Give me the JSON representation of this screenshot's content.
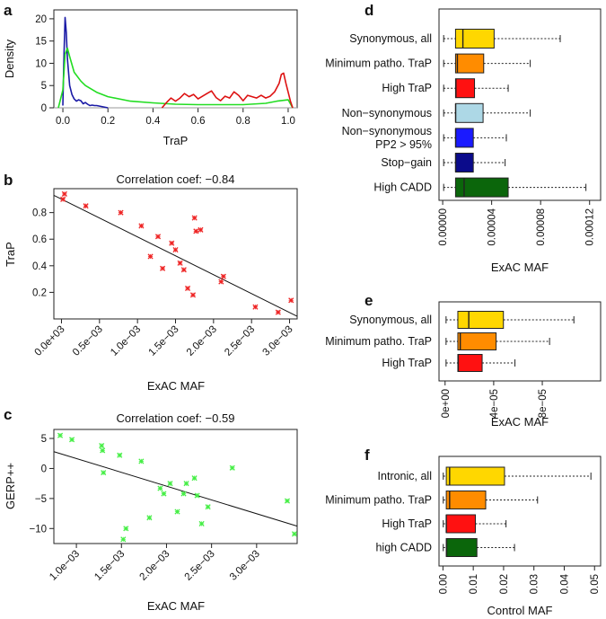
{
  "chart_data": [
    {
      "id": "a",
      "panel_label": "a",
      "type": "line",
      "title": "",
      "xlabel": "TraP",
      "ylabel": "Density",
      "xlim": [
        -0.04,
        1.04
      ],
      "ylim": [
        0,
        22
      ],
      "xticks": [
        "0.0",
        "0.2",
        "0.4",
        "0.6",
        "0.8",
        "1.0"
      ],
      "yticks": [
        "0",
        "5",
        "10",
        "15",
        "20"
      ],
      "series": [
        {
          "name": "blue",
          "color": "#1a1aa6",
          "x": [
            0.0,
            0.005,
            0.01,
            0.015,
            0.02,
            0.03,
            0.04,
            0.05,
            0.06,
            0.07,
            0.08,
            0.09,
            0.1,
            0.11,
            0.12,
            0.13,
            0.14,
            0.15,
            0.16,
            0.17,
            0.18,
            0.19,
            0.2
          ],
          "values": [
            0.5,
            12,
            20.3,
            17,
            11,
            5,
            3,
            2,
            1.5,
            1.8,
            1.6,
            0.9,
            1.2,
            0.8,
            0.5,
            0.6,
            0.5,
            0.5,
            0.4,
            0.3,
            0.2,
            0.1,
            0
          ]
        },
        {
          "name": "green",
          "color": "#22dd22",
          "x": [
            -0.02,
            0.0,
            0.01,
            0.02,
            0.03,
            0.05,
            0.08,
            0.1,
            0.15,
            0.2,
            0.3,
            0.4,
            0.5,
            0.6,
            0.7,
            0.8,
            0.9,
            0.95,
            1.0,
            1.02
          ],
          "values": [
            0,
            4,
            12,
            13.4,
            11.5,
            8,
            6,
            5,
            3.5,
            2.5,
            1.5,
            1.1,
            0.8,
            0.7,
            0.7,
            0.7,
            1.0,
            1.5,
            1.8,
            0
          ]
        },
        {
          "name": "red",
          "color": "#dd1111",
          "x": [
            0.44,
            0.46,
            0.48,
            0.5,
            0.52,
            0.54,
            0.56,
            0.58,
            0.6,
            0.62,
            0.64,
            0.66,
            0.68,
            0.7,
            0.72,
            0.74,
            0.76,
            0.78,
            0.8,
            0.82,
            0.84,
            0.86,
            0.88,
            0.9,
            0.92,
            0.94,
            0.96,
            0.97,
            0.98,
            0.99,
            1.0,
            1.01,
            1.02
          ],
          "values": [
            0,
            1.2,
            2.2,
            1.5,
            2.2,
            3.2,
            2.5,
            3,
            2,
            2.6,
            3.2,
            3.8,
            2.3,
            1.6,
            2.6,
            2.2,
            3.6,
            2.8,
            1.6,
            2.8,
            2.5,
            2.2,
            2.8,
            2.2,
            2.6,
            3.6,
            5.5,
            7.5,
            7.8,
            5.5,
            3.5,
            1.5,
            0
          ]
        }
      ]
    },
    {
      "id": "b",
      "panel_label": "b",
      "type": "scatter",
      "title": "Correlation coef: −0.84",
      "xlabel": "ExAC MAF",
      "ylabel": "TraP",
      "xlim": [
        -0.0001,
        0.0031
      ],
      "ylim": [
        0.0,
        0.98
      ],
      "xticks": [
        "0.0e+03",
        "0.5e−03",
        "1.0e−03",
        "1.5e−03",
        "2.0e−03",
        "2.5e−03",
        "3.0e−03"
      ],
      "xtick_values": [
        0.0,
        0.0005,
        0.001,
        0.0015,
        0.002,
        0.0025,
        0.003
      ],
      "yticks": [
        "0.2",
        "0.4",
        "0.6",
        "0.8"
      ],
      "ytick_values": [
        0.2,
        0.4,
        0.6,
        0.8
      ],
      "color": "#ee2222",
      "x": [
        2e-05,
        4e-05,
        0.00032,
        0.00078,
        0.00105,
        0.00117,
        0.00127,
        0.00133,
        0.00145,
        0.0015,
        0.00156,
        0.00161,
        0.00166,
        0.00173,
        0.00175,
        0.00177,
        0.00183,
        0.0021,
        0.00213,
        0.00255,
        0.00285,
        0.00302
      ],
      "y": [
        0.9,
        0.94,
        0.85,
        0.8,
        0.7,
        0.47,
        0.62,
        0.38,
        0.57,
        0.52,
        0.42,
        0.37,
        0.23,
        0.18,
        0.76,
        0.66,
        0.67,
        0.28,
        0.32,
        0.09,
        0.05,
        0.14
      ],
      "fit_line": {
        "x": [
          -0.0001,
          0.0031
        ],
        "y": [
          0.93,
          0.02
        ]
      }
    },
    {
      "id": "c",
      "panel_label": "c",
      "type": "scatter",
      "title": "Correlation coef: −0.59",
      "xlabel": "ExAC MAF",
      "ylabel": "GERP++",
      "xlim": [
        0.00075,
        0.00345
      ],
      "ylim": [
        -12.5,
        6.5
      ],
      "xticks": [
        "1.0e−03",
        "1.5e−03",
        "2.0e−03",
        "2.5e−03",
        "3.0e−03"
      ],
      "xtick_values": [
        0.001,
        0.0015,
        0.002,
        0.0025,
        0.003
      ],
      "yticks": [
        "5",
        "0",
        "−5",
        "−10"
      ],
      "ytick_values": [
        5,
        0,
        -5,
        -10
      ],
      "color": "#44ee44",
      "x": [
        0.00082,
        0.00095,
        0.00128,
        0.00129,
        0.0013,
        0.00148,
        0.00152,
        0.00155,
        0.00172,
        0.00181,
        0.00193,
        0.00197,
        0.00204,
        0.00212,
        0.00219,
        0.00222,
        0.00231,
        0.00234,
        0.00239,
        0.00246,
        0.00273,
        0.00334,
        0.00342
      ],
      "y": [
        5.5,
        4.8,
        3.8,
        3.0,
        -0.7,
        2.2,
        -11.8,
        -10.0,
        1.2,
        -8.2,
        -3.3,
        -4.2,
        -2.5,
        -7.2,
        -4.2,
        -2.5,
        -1.6,
        -4.5,
        -9.2,
        -6.4,
        0.1,
        -5.4,
        -10.9
      ],
      "fit_line": {
        "x": [
          0.00075,
          0.00345
        ],
        "y": [
          2.8,
          -9.6
        ]
      }
    },
    {
      "id": "d",
      "panel_label": "d",
      "type": "boxplot",
      "title": "",
      "xlabel": "ExAC MAF",
      "xlim": [
        -3e-06,
        0.000129
      ],
      "xticks": [
        "0.00000",
        "0.00004",
        "0.00008",
        "0.00012"
      ],
      "xtick_values": [
        0,
        4e-05,
        8e-05,
        0.00012
      ],
      "categories": [
        "Synonymous, all",
        "Minimum patho. TraP",
        "High TraP",
        "Non−synonymous",
        "Non−synonymous\nPP2 > 95%",
        "Stop−gain",
        "High CADD"
      ],
      "boxes": [
        {
          "label": "Synonymous, all",
          "color": "#ffd700",
          "lower_whisker": 8e-07,
          "q1": 1.05e-05,
          "median": 1.65e-05,
          "q3": 4.2e-05,
          "upper_whisker": 9.6e-05
        },
        {
          "label": "Minimum patho. TraP",
          "color": "#ff8c00",
          "lower_whisker": 8e-07,
          "q1": 1.05e-05,
          "median": 1.2e-05,
          "q3": 3.35e-05,
          "upper_whisker": 7.15e-05
        },
        {
          "label": "High TraP",
          "color": "#ff1111",
          "lower_whisker": 8e-07,
          "q1": 1.05e-05,
          "median": 1.08e-05,
          "q3": 2.6e-05,
          "upper_whisker": 5.35e-05
        },
        {
          "label": "Non−synonymous",
          "color": "#add8e6",
          "lower_whisker": 8e-07,
          "q1": 1.05e-05,
          "median": 1.06e-05,
          "q3": 3.3e-05,
          "upper_whisker": 7.15e-05
        },
        {
          "label": "Non−synonymous PP2 > 95%",
          "color": "#1a1aff",
          "lower_whisker": 8e-07,
          "q1": 1.05e-05,
          "median": 1.06e-05,
          "q3": 2.5e-05,
          "upper_whisker": 5.2e-05
        },
        {
          "label": "Stop−gain",
          "color": "#0b0b8b",
          "lower_whisker": 8e-07,
          "q1": 1.05e-05,
          "median": 1.06e-05,
          "q3": 2.5e-05,
          "upper_whisker": 5.1e-05
        },
        {
          "label": "High CADD",
          "color": "#0b660b",
          "lower_whisker": 8e-07,
          "q1": 1.05e-05,
          "median": 1.75e-05,
          "q3": 5.35e-05,
          "upper_whisker": 0.000117
        }
      ]
    },
    {
      "id": "e",
      "panel_label": "e",
      "type": "boxplot",
      "title": "",
      "xlabel": "ExAC MAF",
      "xlim": [
        -5e-06,
        0.000128
      ],
      "xticks": [
        "0e+00",
        "4e−05",
        "8e−05"
      ],
      "xtick_values": [
        0,
        4e-05,
        8e-05
      ],
      "categories": [
        "Synonymous, all",
        "Minimum patho. TraP",
        "High TraP"
      ],
      "boxes": [
        {
          "label": "Synonymous, all",
          "color": "#ffd700",
          "lower_whisker": 8e-07,
          "q1": 1.05e-05,
          "median": 1.95e-05,
          "q3": 4.8e-05,
          "upper_whisker": 0.000106
        },
        {
          "label": "Minimum patho. TraP",
          "color": "#ff8c00",
          "lower_whisker": 8e-07,
          "q1": 1.05e-05,
          "median": 1.25e-05,
          "q3": 4.2e-05,
          "upper_whisker": 8.6e-05
        },
        {
          "label": "High TraP",
          "color": "#ff1111",
          "lower_whisker": 8e-07,
          "q1": 1.05e-05,
          "median": 1.08e-05,
          "q3": 3.05e-05,
          "upper_whisker": 5.75e-05
        }
      ]
    },
    {
      "id": "f",
      "panel_label": "f",
      "type": "boxplot",
      "title": "",
      "xlabel": "Control MAF",
      "xlim": [
        -0.0013,
        0.052
      ],
      "xticks": [
        "0.00",
        "0.01",
        "0.02",
        "0.03",
        "0.04",
        "0.05"
      ],
      "xtick_values": [
        0,
        0.01,
        0.02,
        0.03,
        0.04,
        0.05
      ],
      "categories": [
        "Intronic, all",
        "Minimum patho. TraP",
        "High TraP",
        "high CADD"
      ],
      "boxes": [
        {
          "label": "Intronic, all",
          "color": "#ffd700",
          "lower_whisker": 0.0001,
          "q1": 0.0011,
          "median": 0.0022,
          "q3": 0.0203,
          "upper_whisker": 0.0488
        },
        {
          "label": "Minimum patho. TraP",
          "color": "#ff8c00",
          "lower_whisker": 0.0001,
          "q1": 0.0011,
          "median": 0.0022,
          "q3": 0.0141,
          "upper_whisker": 0.0312
        },
        {
          "label": "High TraP",
          "color": "#ff1111",
          "lower_whisker": 0.0001,
          "q1": 0.0011,
          "median": 0.0011,
          "q3": 0.0107,
          "upper_whisker": 0.0208
        },
        {
          "label": "high CADD",
          "color": "#0b660b",
          "lower_whisker": 0.0001,
          "q1": 0.0011,
          "median": 0.0012,
          "q3": 0.0112,
          "upper_whisker": 0.0236
        }
      ]
    }
  ]
}
